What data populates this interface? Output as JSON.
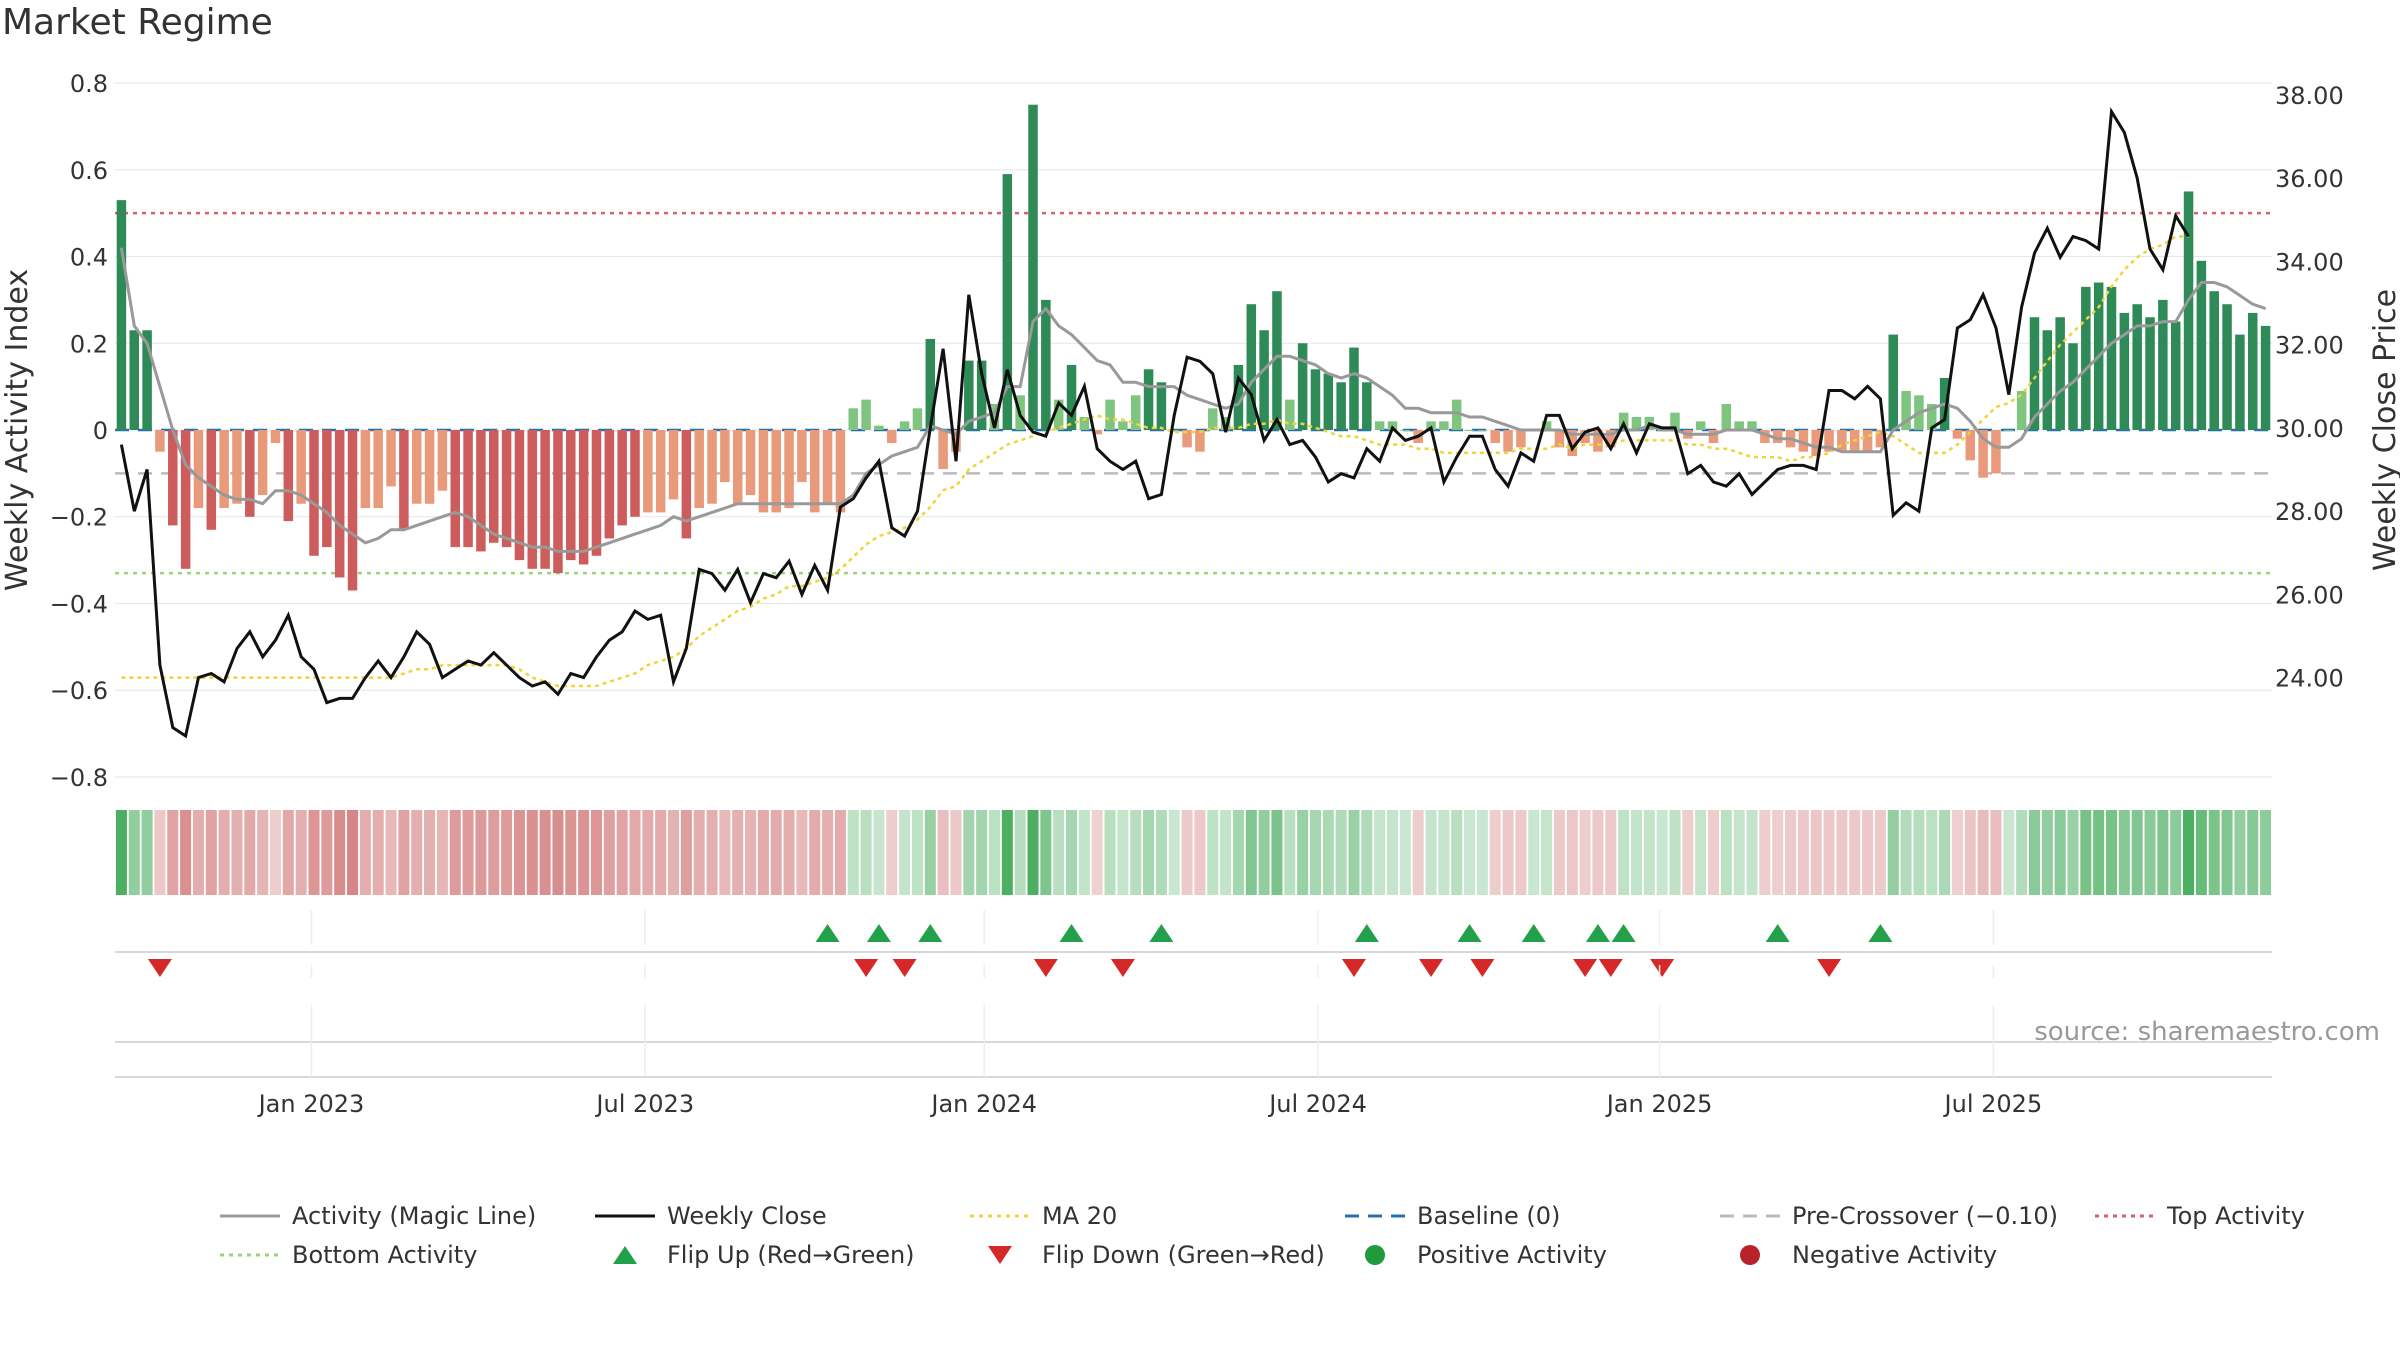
{
  "chart_data": {
    "type": "bar",
    "title": "Market Regime",
    "ylabel": "Weekly Activity Index",
    "y2label": "Weekly Close Price",
    "ylim": [
      -0.83,
      0.83
    ],
    "y2lim": [
      21.3,
      38.6
    ],
    "yticks": [
      0.8,
      0.6,
      0.4,
      0.2,
      0,
      -0.2,
      -0.4,
      -0.6,
      -0.8
    ],
    "yticklabels": [
      "0.8",
      "0.6",
      "0.4",
      "0.2",
      "0",
      "−0.2",
      "−0.4",
      "−0.6",
      "−0.8"
    ],
    "y2ticks": [
      38,
      36,
      34,
      32,
      30,
      28,
      26,
      24
    ],
    "y2ticklabels": [
      "38.00",
      "36.00",
      "34.00",
      "32.00",
      "30.00",
      "28.00",
      "26.00",
      "24.00"
    ],
    "xlabels": [
      "Jan 2023",
      "Jul 2023",
      "Jan 2024",
      "Jul 2024",
      "Jan 2025",
      "Jul 2025"
    ],
    "xlabel_weeks": [
      15.3,
      41.3,
      67.7,
      93.7,
      120.3,
      146.3
    ],
    "top_activity": 0.5,
    "bottom_activity": -0.33,
    "pre_crossover": -0.1,
    "baseline": 0,
    "activity": [
      0.53,
      0.23,
      0.23,
      -0.05,
      -0.22,
      -0.32,
      -0.18,
      -0.23,
      -0.18,
      -0.17,
      -0.2,
      -0.15,
      -0.03,
      -0.21,
      -0.17,
      -0.29,
      -0.27,
      -0.34,
      -0.37,
      -0.18,
      -0.18,
      -0.13,
      -0.23,
      -0.17,
      -0.17,
      -0.14,
      -0.27,
      -0.27,
      -0.28,
      -0.26,
      -0.27,
      -0.3,
      -0.32,
      -0.32,
      -0.33,
      -0.3,
      -0.31,
      -0.29,
      -0.25,
      -0.22,
      -0.2,
      -0.19,
      -0.19,
      -0.16,
      -0.25,
      -0.18,
      -0.17,
      -0.12,
      -0.17,
      -0.15,
      -0.19,
      -0.19,
      -0.18,
      -0.12,
      -0.19,
      -0.17,
      -0.19,
      0.05,
      0.07,
      0.01,
      -0.03,
      0.02,
      0.05,
      0.21,
      -0.09,
      -0.05,
      0.16,
      0.16,
      0.06,
      0.59,
      0.08,
      0.75,
      0.3,
      0.07,
      0.15,
      0.03,
      -0.01,
      0.07,
      0.02,
      0.08,
      0.14,
      0.11,
      0.0,
      -0.04,
      -0.05,
      0.05,
      0.03,
      0.15,
      0.29,
      0.23,
      0.32,
      0.07,
      0.2,
      0.14,
      0.13,
      0.11,
      0.19,
      0.11,
      0.02,
      0.02,
      0.0,
      -0.03,
      0.02,
      0.02,
      0.07,
      0.0,
      0.0,
      -0.03,
      -0.05,
      -0.04,
      0.0,
      0.02,
      -0.04,
      -0.06,
      -0.03,
      -0.05,
      -0.04,
      0.04,
      0.03,
      0.03,
      0.0,
      0.04,
      -0.02,
      0.02,
      -0.03,
      0.06,
      0.02,
      0.02,
      -0.03,
      -0.03,
      -0.04,
      -0.05,
      -0.06,
      -0.05,
      -0.05,
      -0.05,
      -0.05,
      -0.04,
      0.22,
      0.09,
      0.08,
      0.06,
      0.12,
      -0.02,
      -0.07,
      -0.11,
      -0.1,
      0.0,
      0.09,
      0.26,
      0.23,
      0.26,
      0.2,
      0.33,
      0.34,
      0.33,
      0.27,
      0.29,
      0.26,
      0.3,
      0.25,
      0.55,
      0.39,
      0.32,
      0.29,
      0.22,
      0.27,
      0.24
    ],
    "magic_line": [
      0.42,
      0.24,
      0.2,
      0.1,
      0.0,
      -0.08,
      -0.11,
      -0.13,
      -0.15,
      -0.16,
      -0.16,
      -0.17,
      -0.14,
      -0.14,
      -0.15,
      -0.17,
      -0.19,
      -0.22,
      -0.24,
      -0.26,
      -0.25,
      -0.23,
      -0.23,
      -0.22,
      -0.21,
      -0.2,
      -0.19,
      -0.2,
      -0.22,
      -0.24,
      -0.25,
      -0.26,
      -0.27,
      -0.27,
      -0.28,
      -0.28,
      -0.28,
      -0.27,
      -0.26,
      -0.25,
      -0.24,
      -0.23,
      -0.22,
      -0.2,
      -0.21,
      -0.2,
      -0.19,
      -0.18,
      -0.17,
      -0.17,
      -0.17,
      -0.17,
      -0.17,
      -0.17,
      -0.17,
      -0.17,
      -0.17,
      -0.15,
      -0.1,
      -0.08,
      -0.06,
      -0.05,
      -0.04,
      0.01,
      0.0,
      -0.01,
      0.02,
      0.03,
      0.04,
      0.1,
      0.1,
      0.25,
      0.28,
      0.24,
      0.22,
      0.19,
      0.16,
      0.15,
      0.11,
      0.11,
      0.1,
      0.1,
      0.1,
      0.08,
      0.07,
      0.06,
      0.05,
      0.06,
      0.11,
      0.14,
      0.17,
      0.17,
      0.16,
      0.15,
      0.13,
      0.12,
      0.13,
      0.12,
      0.1,
      0.08,
      0.05,
      0.05,
      0.04,
      0.04,
      0.04,
      0.03,
      0.03,
      0.02,
      0.01,
      0.0,
      0.0,
      0.0,
      0.0,
      -0.01,
      -0.01,
      -0.01,
      -0.01,
      0.0,
      0.0,
      0.01,
      0.0,
      0.0,
      -0.01,
      -0.01,
      -0.01,
      0.0,
      0.0,
      0.0,
      -0.01,
      -0.02,
      -0.02,
      -0.03,
      -0.04,
      -0.04,
      -0.05,
      -0.05,
      -0.05,
      -0.05,
      0.0,
      0.02,
      0.04,
      0.05,
      0.06,
      0.05,
      0.02,
      -0.02,
      -0.04,
      -0.04,
      -0.02,
      0.03,
      0.06,
      0.09,
      0.11,
      0.14,
      0.17,
      0.2,
      0.22,
      0.24,
      0.24,
      0.25,
      0.25,
      0.3,
      0.34,
      0.34,
      0.33,
      0.31,
      0.29,
      0.28
    ],
    "weekly_close": [
      29.6,
      28.0,
      29.0,
      24.3,
      22.8,
      22.6,
      24.0,
      24.1,
      23.9,
      24.7,
      25.1,
      24.5,
      24.9,
      25.5,
      24.5,
      24.2,
      23.4,
      23.5,
      23.5,
      24.0,
      24.4,
      24.0,
      24.5,
      25.1,
      24.8,
      24.0,
      24.2,
      24.4,
      24.3,
      24.6,
      24.3,
      24.0,
      23.8,
      23.9,
      23.6,
      24.1,
      24.0,
      24.5,
      24.9,
      25.1,
      25.6,
      25.4,
      25.5,
      23.9,
      24.7,
      26.6,
      26.5,
      26.1,
      26.6,
      25.8,
      26.5,
      26.4,
      26.8,
      26.0,
      26.7,
      26.1,
      28.1,
      28.3,
      28.8,
      29.2,
      27.6,
      27.4,
      28.0,
      30.0,
      31.9,
      29.2,
      33.2,
      31.3,
      30.0,
      31.4,
      30.3,
      29.9,
      29.8,
      30.6,
      30.3,
      31.0,
      29.5,
      29.2,
      29.0,
      29.2,
      28.3,
      28.4,
      30.3,
      31.7,
      31.6,
      31.3,
      29.9,
      31.2,
      30.8,
      29.7,
      30.2,
      29.6,
      29.7,
      29.3,
      28.7,
      28.9,
      28.8,
      29.5,
      29.2,
      30.0,
      29.7,
      29.8,
      30.0,
      28.7,
      29.3,
      29.8,
      29.8,
      29.0,
      28.6,
      29.4,
      29.2,
      30.3,
      30.3,
      29.5,
      29.9,
      30.0,
      29.5,
      30.1,
      29.4,
      30.1,
      30.0,
      30.0,
      28.9,
      29.1,
      28.7,
      28.6,
      28.9,
      28.4,
      28.7,
      29.0,
      29.1,
      29.1,
      29.0,
      30.9,
      30.9,
      30.7,
      31.0,
      30.7,
      27.9,
      28.2,
      28.0,
      30.0,
      30.2,
      32.4,
      32.6,
      33.2,
      32.4,
      30.8,
      32.9,
      34.2,
      34.8,
      34.1,
      34.6,
      34.5,
      34.3,
      37.6,
      37.1,
      36.0,
      34.3,
      33.8,
      35.1,
      34.6
    ],
    "ma20": [
      24.0,
      24.0,
      24.0,
      24.0,
      24.0,
      24.0,
      24.0,
      24.0,
      24.0,
      24.0,
      24.0,
      24.0,
      24.0,
      24.0,
      24.0,
      24.0,
      24.0,
      24.0,
      24.0,
      24.0,
      24.0,
      24.0,
      24.1,
      24.2,
      24.2,
      24.3,
      24.3,
      24.3,
      24.3,
      24.3,
      24.3,
      24.2,
      24.0,
      23.9,
      23.8,
      23.8,
      23.8,
      23.8,
      23.9,
      24.0,
      24.1,
      24.3,
      24.4,
      24.5,
      24.7,
      25.0,
      25.2,
      25.4,
      25.6,
      25.7,
      25.9,
      26.0,
      26.2,
      26.2,
      26.3,
      26.4,
      26.6,
      26.9,
      27.2,
      27.4,
      27.5,
      27.6,
      27.8,
      28.1,
      28.5,
      28.6,
      29.0,
      29.2,
      29.4,
      29.6,
      29.7,
      29.8,
      29.9,
      30.0,
      30.1,
      30.2,
      30.3,
      30.2,
      30.2,
      30.1,
      30.0,
      30.0,
      29.9,
      29.9,
      29.9,
      30.0,
      30.0,
      30.0,
      30.1,
      30.1,
      30.2,
      30.1,
      30.1,
      30.0,
      29.9,
      29.8,
      29.8,
      29.7,
      29.6,
      29.6,
      29.6,
      29.5,
      29.5,
      29.4,
      29.4,
      29.4,
      29.4,
      29.4,
      29.4,
      29.5,
      29.5,
      29.5,
      29.6,
      29.5,
      29.6,
      29.6,
      29.6,
      29.7,
      29.7,
      29.7,
      29.7,
      29.7,
      29.6,
      29.6,
      29.5,
      29.5,
      29.4,
      29.3,
      29.3,
      29.3,
      29.2,
      29.3,
      29.3,
      29.4,
      29.6,
      29.7,
      29.8,
      29.9,
      29.8,
      29.6,
      29.4,
      29.4,
      29.4,
      29.6,
      29.9,
      30.2,
      30.5,
      30.6,
      30.8,
      31.2,
      31.6,
      32.0,
      32.3,
      32.6,
      32.9,
      33.4,
      33.8,
      34.1,
      34.3,
      34.4,
      34.6,
      34.6
    ],
    "flip_up_weeks": [
      55,
      59,
      63,
      74,
      81,
      97,
      105,
      110,
      115,
      117,
      129,
      137
    ],
    "flip_down_weeks": [
      3,
      58,
      61,
      72,
      78,
      96,
      102,
      106,
      114,
      116,
      120,
      133
    ],
    "legend": [
      {
        "label": "Activity (Magic Line)",
        "kind": "solid",
        "color": "#999999"
      },
      {
        "label": "Weekly Close",
        "kind": "solid",
        "color": "#111111"
      },
      {
        "label": "MA 20",
        "kind": "dotted",
        "color": "#f0d43a"
      },
      {
        "label": "Baseline (0)",
        "kind": "dashed",
        "color": "#2a6fa8"
      },
      {
        "label": "Pre-Crossover (−0.10)",
        "kind": "dashed",
        "color": "#bbbbbb"
      },
      {
        "label": "Top Activity",
        "kind": "dotted",
        "color": "#d9606a"
      },
      {
        "label": "Bottom Activity",
        "kind": "dotted",
        "color": "#9dd27a"
      },
      {
        "label": "Flip Up (Red→Green)",
        "kind": "tri-up",
        "color": "#22a04a"
      },
      {
        "label": "Flip Down (Green→Red)",
        "kind": "tri-down",
        "color": "#d62828"
      },
      {
        "label": "Positive Activity",
        "kind": "dot",
        "color": "#1f9a3c"
      },
      {
        "label": "Negative Activity",
        "kind": "dot",
        "color": "#b8232a"
      }
    ],
    "source": "source: sharemaestro.com"
  },
  "colors": {
    "pos_strong": "#2e8b57",
    "pos_weak": "#7fc47f",
    "neg_strong": "#cd5c5c",
    "neg_weak": "#e89a7a",
    "tile_pos": "#4daf62",
    "tile_neg": "#cd6b6b"
  }
}
